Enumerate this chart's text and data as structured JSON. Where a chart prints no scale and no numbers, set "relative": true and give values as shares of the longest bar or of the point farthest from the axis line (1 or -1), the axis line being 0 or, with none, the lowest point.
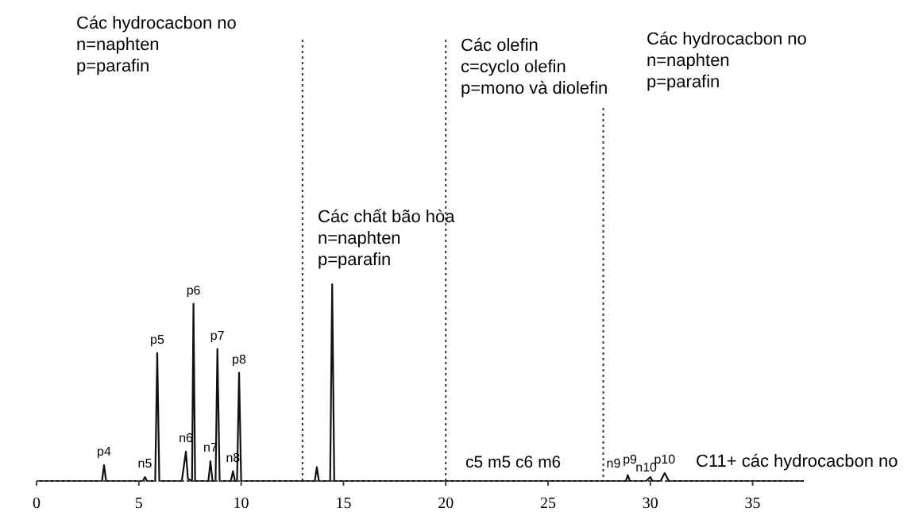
{
  "chart_data": {
    "type": "line",
    "relative": true,
    "line_style": "solid",
    "marker": "none",
    "grid": false,
    "xlim": [
      0,
      37.5
    ],
    "xticks": [
      0,
      5,
      10,
      15,
      20,
      25,
      30,
      35
    ],
    "series": [
      {
        "color": "#111111",
        "x": [
          0,
          3.2,
          3.3,
          3.4,
          5.2,
          5.3,
          5.4,
          5.8,
          5.9,
          6.0,
          7.1,
          7.3,
          7.4,
          7.6,
          7.67,
          7.75,
          8.4,
          8.5,
          8.6,
          8.75,
          8.84,
          8.95,
          9.5,
          9.6,
          9.7,
          9.8,
          9.9,
          10.0,
          13.6,
          13.7,
          13.8,
          14.35,
          14.45,
          14.55,
          28.8,
          28.9,
          29.0,
          29.8,
          30.0,
          30.1,
          30.5,
          30.7,
          30.9,
          37.5
        ],
        "values": [
          0,
          0,
          0.08,
          0,
          0,
          0.02,
          0,
          0,
          0.65,
          0,
          0,
          0.15,
          0.01,
          0,
          0.9,
          0,
          0,
          0.1,
          0,
          0,
          0.67,
          0,
          0,
          0.05,
          0,
          0,
          0.55,
          0,
          0,
          0.07,
          0,
          0,
          1,
          0,
          0,
          0.03,
          0,
          0,
          0.02,
          0,
          0,
          0.04,
          0,
          0
        ]
      }
    ],
    "ref_lines": [
      {
        "axis": "x",
        "value": 13,
        "line_style": "dotted"
      },
      {
        "axis": "x",
        "value": 20,
        "line_style": "dotted"
      },
      {
        "axis": "x",
        "value": 27.7,
        "line_style": "dotted"
      }
    ],
    "annotations": [
      "Các hydrocacbon no\nn=naphten\np=parafin",
      "Các chất bão hòa\nn=naphten\np=parafin",
      "Các olefin\nc=cyclo olefin\np=mono và diolefin",
      "Các hydrocacbon no\nn=naphten\np=parafin",
      {
        "text": "p4",
        "x": 3.3,
        "y": 0.08
      },
      {
        "text": "n5",
        "x": 5.3,
        "y": 0.02
      },
      {
        "text": "p5",
        "x": 5.9,
        "y": 0.65
      },
      {
        "text": "n6",
        "x": 7.3,
        "y": 0.15
      },
      {
        "text": "p6",
        "x": 7.67,
        "y": 0.9
      },
      {
        "text": "n7",
        "x": 8.5,
        "y": 0.1
      },
      {
        "text": "p7",
        "x": 8.84,
        "y": 0.67
      },
      {
        "text": "n8",
        "x": 9.6,
        "y": 0.05
      },
      {
        "text": "p8",
        "x": 9.9,
        "y": 0.55
      },
      {
        "text": "c5 m5 c6 m6",
        "x": 23.3,
        "y": 0.02
      },
      {
        "text": "n9",
        "x": 28.2,
        "y": 0.02
      },
      {
        "text": "p9",
        "x": 29.0,
        "y": 0.04
      },
      {
        "text": "n10",
        "x": 29.8,
        "y": 0
      },
      {
        "text": "p10",
        "x": 30.7,
        "y": 0.04
      },
      "C11+ các hydrocacbon no"
    ]
  }
}
